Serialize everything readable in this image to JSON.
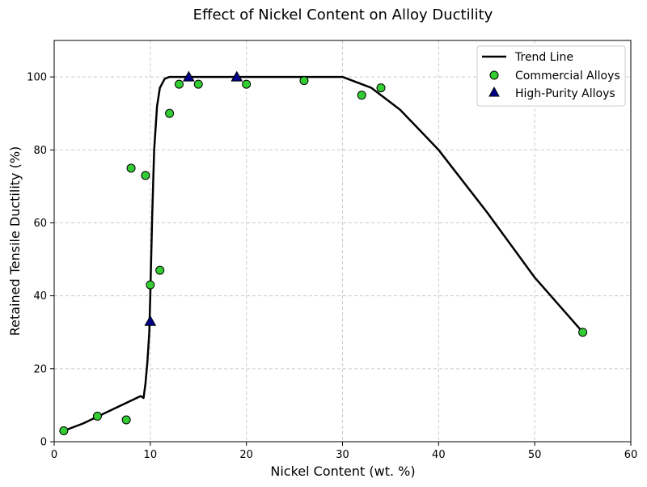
{
  "chart_data": {
    "type": "scatter",
    "title": "Effect of Nickel Content on Alloy Ductility",
    "xlabel": "Nickel Content (wt. %)",
    "ylabel": "Retained Tensile Ductility (%)",
    "xlim": [
      0,
      60
    ],
    "ylim": [
      0,
      110
    ],
    "xticks": [
      0,
      10,
      20,
      30,
      40,
      50,
      60
    ],
    "yticks": [
      0,
      20,
      40,
      60,
      80,
      100
    ],
    "grid": true,
    "legend_position": "top-right",
    "series": [
      {
        "name": "Trend Line",
        "kind": "line",
        "color": "#000000",
        "x": [
          1,
          3,
          5,
          7,
          9,
          9.3,
          9.5,
          9.7,
          9.9,
          10.0,
          10.2,
          10.4,
          10.7,
          11.0,
          11.5,
          12.0,
          13,
          20,
          30,
          33,
          36,
          40,
          45,
          50,
          55
        ],
        "y": [
          3,
          5,
          7.5,
          10,
          12.5,
          12,
          16,
          22,
          30,
          40,
          62,
          80,
          92,
          97,
          99.5,
          100,
          100,
          100,
          100,
          97,
          91,
          80,
          63,
          45,
          30
        ]
      },
      {
        "name": "Commercial Alloys",
        "kind": "scatter",
        "marker": "circle",
        "color": "#33cc33",
        "x": [
          1,
          4.5,
          7.5,
          8,
          9.5,
          10,
          11,
          12,
          13,
          15,
          20,
          26,
          32,
          34,
          55
        ],
        "y": [
          3,
          7,
          6,
          75,
          73,
          43,
          47,
          90,
          98,
          98,
          98,
          99,
          95,
          97,
          30
        ]
      },
      {
        "name": "High-Purity Alloys",
        "kind": "scatter",
        "marker": "triangle",
        "color": "#00008b",
        "x": [
          10,
          14,
          19
        ],
        "y": [
          33,
          100,
          100
        ]
      }
    ]
  }
}
